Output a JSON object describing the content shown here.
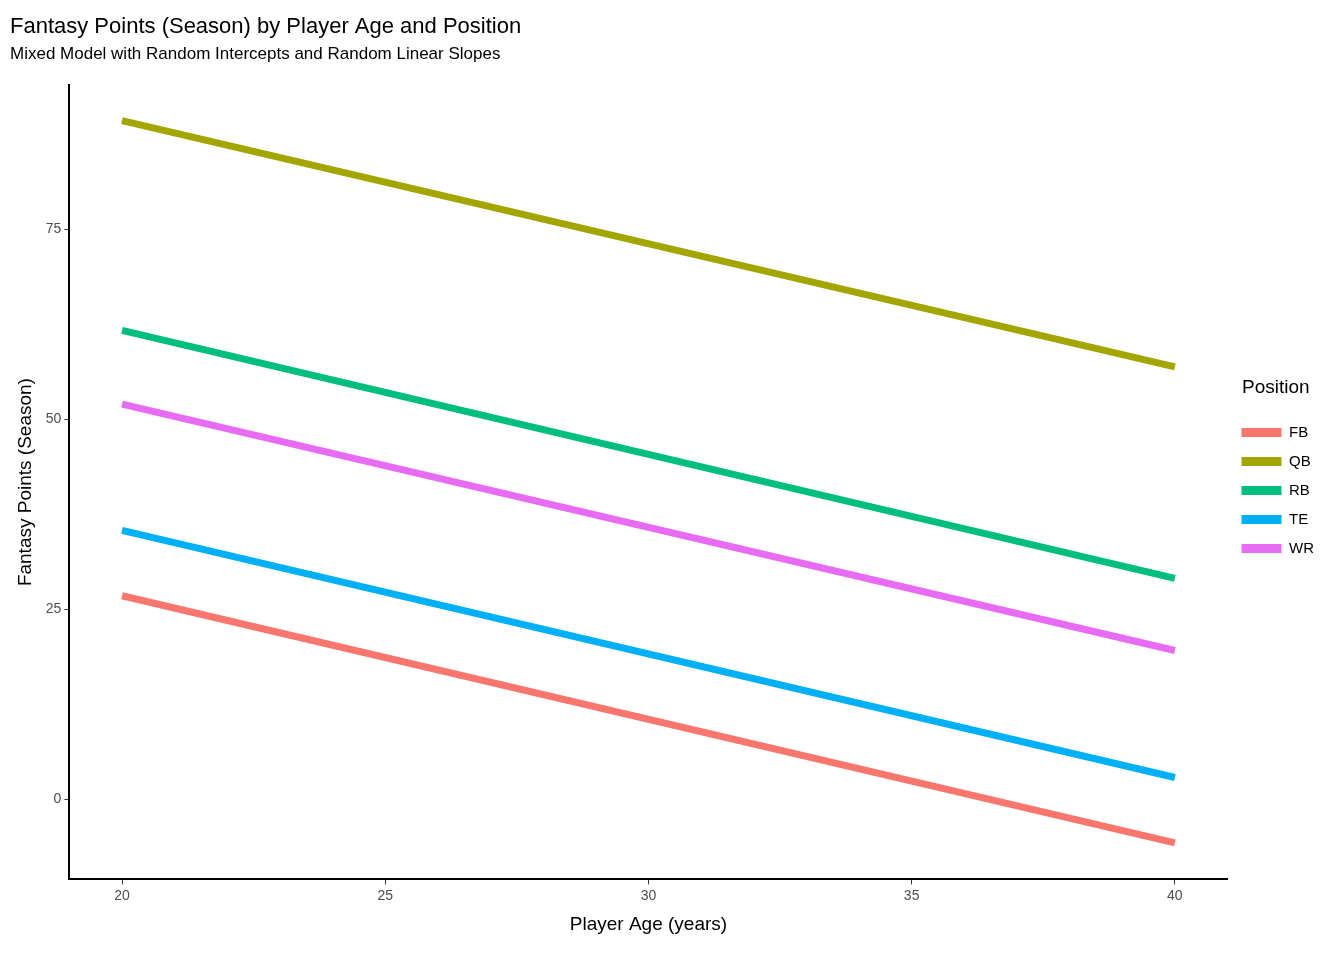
{
  "chart_data": {
    "type": "line",
    "title": "Fantasy Points (Season) by Player Age and Position",
    "subtitle": "Mixed Model with Random Intercepts and Random Linear Slopes",
    "x_label": "Player Age (years)",
    "y_label": "Fantasy Points (Season)",
    "legend_title": "Position",
    "x": [
      20,
      40
    ],
    "series": [
      {
        "name": "FB",
        "color": "#F8766D",
        "values": [
          26.8,
          -5.7
        ]
      },
      {
        "name": "QB",
        "color": "#A3A500",
        "values": [
          89.3,
          56.9
        ]
      },
      {
        "name": "RB",
        "color": "#00BF7D",
        "values": [
          61.7,
          29.1
        ]
      },
      {
        "name": "TE",
        "color": "#00B0F6",
        "values": [
          35.4,
          2.9
        ]
      },
      {
        "name": "WR",
        "color": "#E76BF3",
        "values": [
          52.0,
          19.6
        ]
      }
    ],
    "xlim": [
      19,
      41
    ],
    "xticks": [
      20,
      25,
      30,
      35,
      40
    ],
    "ylim": [
      -10.5,
      94
    ],
    "yticks": [
      0,
      25,
      50,
      75
    ],
    "grid": false,
    "legend": "right"
  }
}
